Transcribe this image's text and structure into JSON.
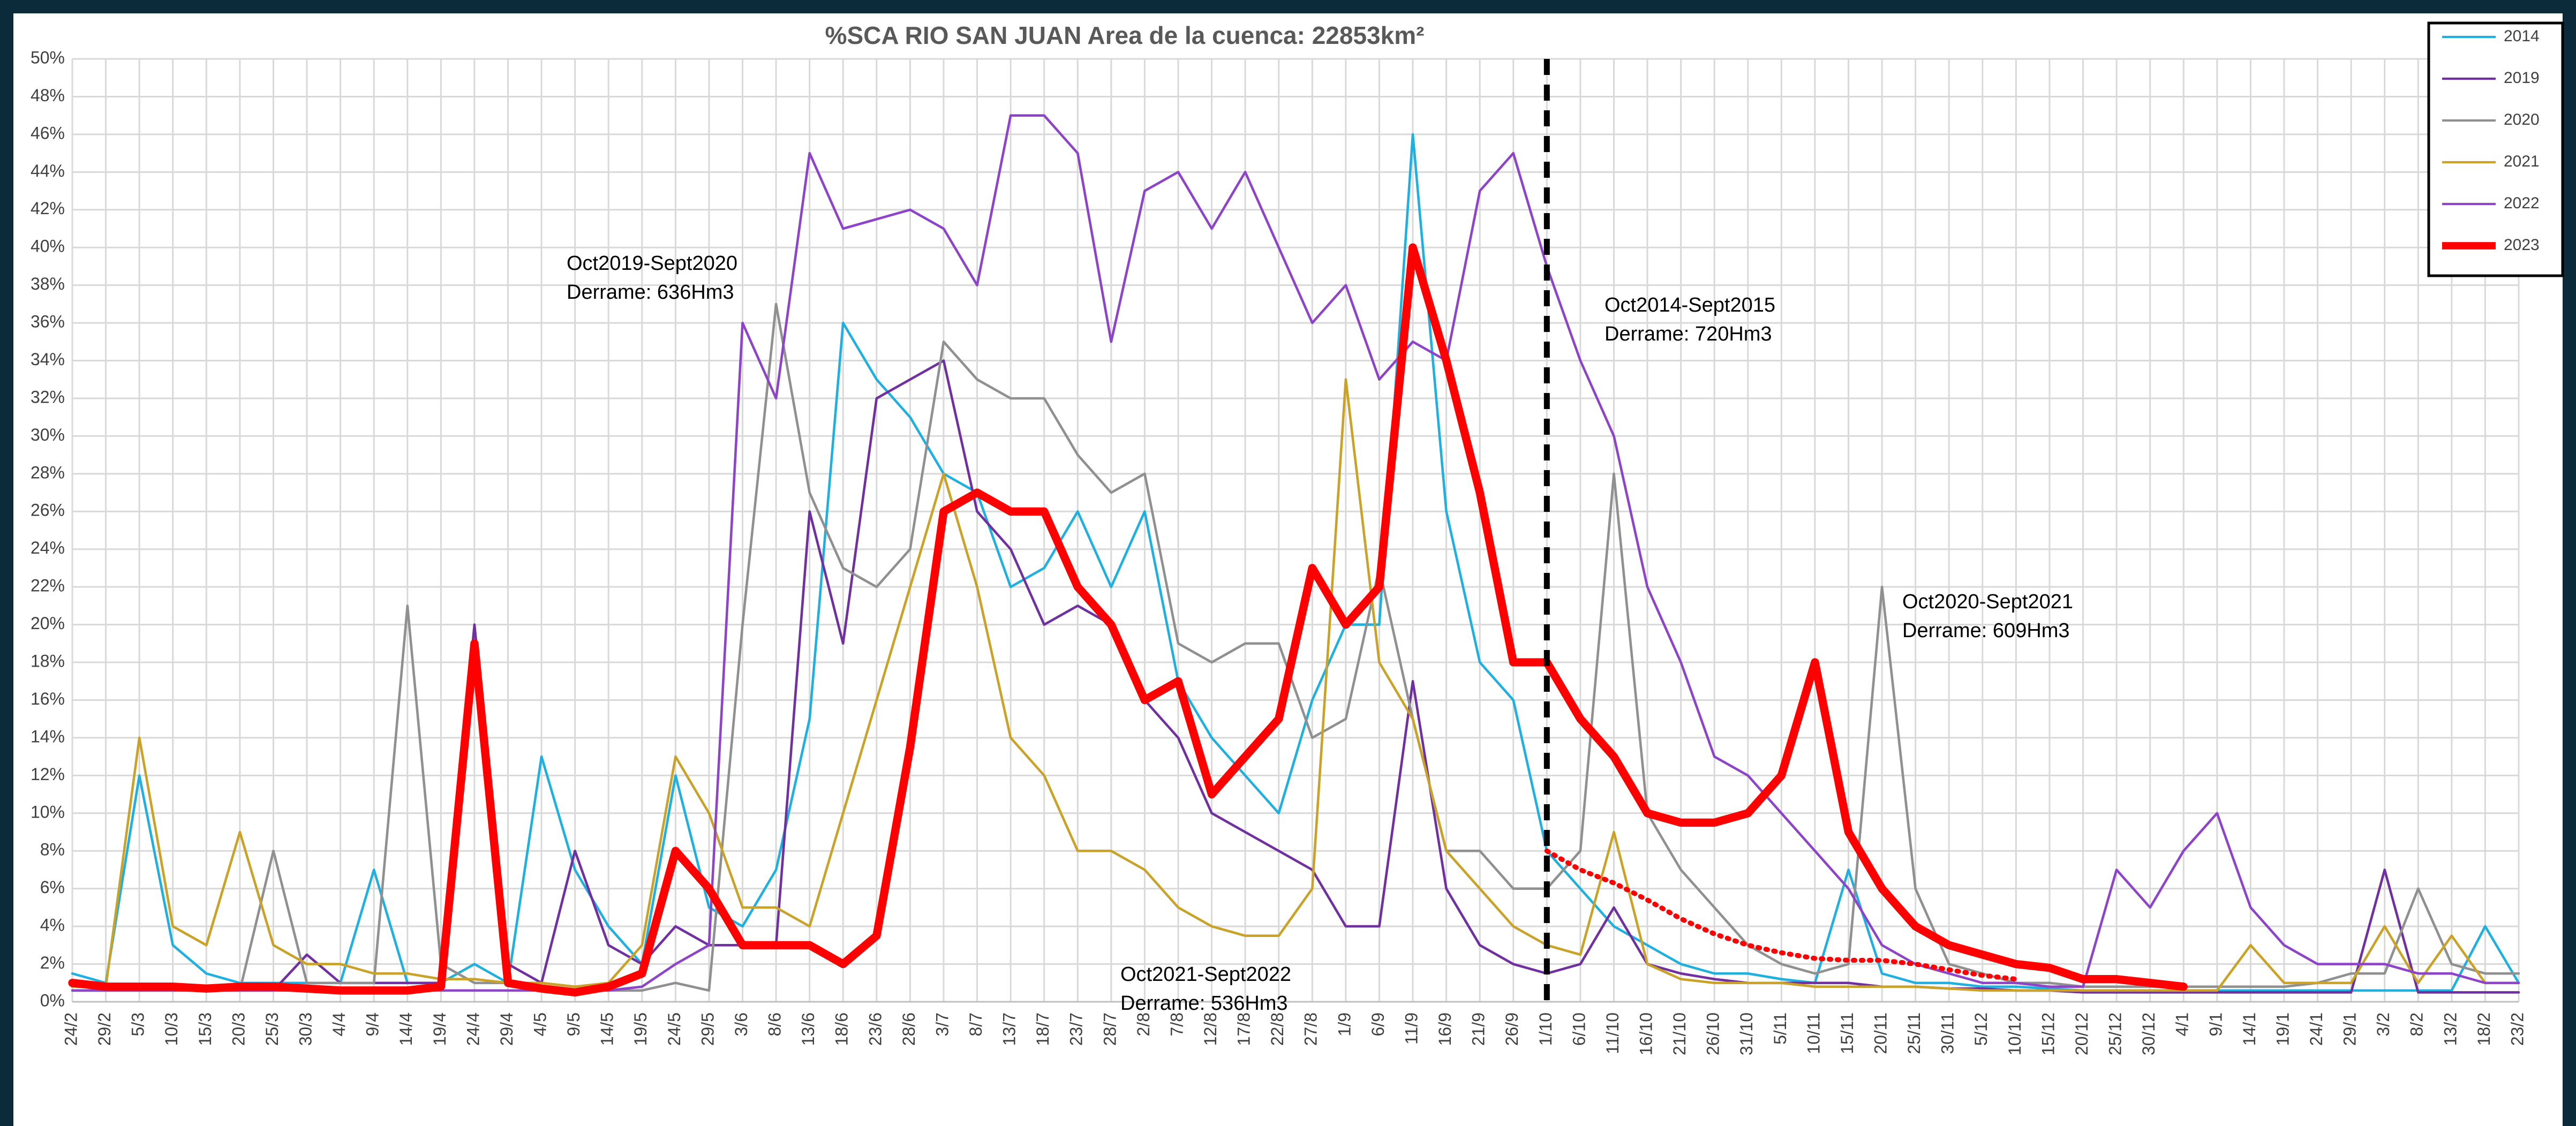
{
  "chart_data": {
    "type": "line",
    "title": "%SCA RIO SAN JUAN Area de la cuenca: 22853km²",
    "categories": [
      "24/2",
      "29/2",
      "5/3",
      "10/3",
      "15/3",
      "20/3",
      "25/3",
      "30/3",
      "4/4",
      "9/4",
      "14/4",
      "19/4",
      "24/4",
      "29/4",
      "4/5",
      "9/5",
      "14/5",
      "19/5",
      "24/5",
      "29/5",
      "3/6",
      "8/6",
      "13/6",
      "18/6",
      "23/6",
      "28/6",
      "3/7",
      "8/7",
      "13/7",
      "18/7",
      "23/7",
      "28/7",
      "2/8",
      "7/8",
      "12/8",
      "17/8",
      "22/8",
      "27/8",
      "1/9",
      "6/9",
      "11/9",
      "16/9",
      "21/9",
      "26/9",
      "1/10",
      "6/10",
      "11/10",
      "16/10",
      "21/10",
      "26/10",
      "31/10",
      "5/11",
      "10/11",
      "15/11",
      "20/11",
      "25/11",
      "30/11",
      "5/12",
      "10/12",
      "15/12",
      "20/12",
      "25/12",
      "30/12",
      "4/1",
      "9/1",
      "14/1",
      "19/1",
      "24/1",
      "29/1",
      "3/2",
      "8/2",
      "13/2",
      "18/2",
      "23/2"
    ],
    "series": [
      {
        "name": "2014",
        "color": "#1fb0e0",
        "width": 1.5,
        "values": [
          1.5,
          1,
          12,
          3,
          1.5,
          1,
          1,
          1,
          1,
          7,
          1,
          1,
          2,
          1,
          13,
          7,
          4,
          2,
          12,
          5,
          4,
          7,
          15,
          36,
          33,
          31,
          28,
          27,
          22,
          23,
          26,
          22,
          26,
          17,
          14,
          12,
          10,
          16,
          20,
          20,
          46,
          26,
          18,
          16,
          8,
          6,
          4,
          3,
          2,
          1.5,
          1.5,
          1.2,
          1,
          7,
          1.5,
          1,
          1,
          0.8,
          0.8,
          0.7,
          0.6,
          0.6,
          0.6,
          0.6,
          0.6,
          0.6,
          0.6,
          0.6,
          0.6,
          0.6,
          0.6,
          0.6,
          4,
          1
        ]
      },
      {
        "name": "2019",
        "color": "#7030a0",
        "width": 1.5,
        "values": [
          0.8,
          0.8,
          0.8,
          0.8,
          0.6,
          0.6,
          0.6,
          2.5,
          1,
          1,
          1,
          1,
          20,
          2,
          1,
          8,
          3,
          2,
          4,
          3,
          3,
          3,
          26,
          19,
          32,
          33,
          34,
          26,
          24,
          20,
          21,
          20,
          16,
          14,
          10,
          9,
          8,
          7,
          4,
          4,
          17,
          6,
          3,
          2,
          1.5,
          2,
          5,
          2,
          1.5,
          1.2,
          1,
          1,
          1,
          1,
          0.8,
          0.8,
          0.7,
          0.7,
          0.6,
          0.6,
          0.5,
          0.5,
          0.5,
          0.5,
          0.5,
          0.5,
          0.5,
          0.5,
          0.5,
          7,
          0.5,
          0.5,
          0.5,
          0.5
        ]
      },
      {
        "name": "2020",
        "color": "#909090",
        "width": 1.5,
        "values": [
          0.6,
          0.6,
          0.6,
          0.6,
          0.6,
          0.6,
          8,
          1,
          1,
          1,
          21,
          2,
          1,
          1,
          0.8,
          0.6,
          0.6,
          0.6,
          1,
          0.6,
          20,
          37,
          27,
          23,
          22,
          24,
          35,
          33,
          32,
          32,
          29,
          27,
          28,
          19,
          18,
          19,
          19,
          14,
          15,
          23,
          15,
          8,
          8,
          6,
          6,
          8,
          28,
          10,
          7,
          5,
          3,
          2,
          1.5,
          2,
          22,
          6,
          2,
          1.5,
          1,
          1,
          0.8,
          0.8,
          0.8,
          0.8,
          0.8,
          0.8,
          0.8,
          1,
          1.5,
          1.5,
          6,
          2,
          1.5,
          1.5
        ]
      },
      {
        "name": "2021",
        "color": "#c9a227",
        "width": 1.5,
        "values": [
          0.8,
          0.8,
          14,
          4,
          3,
          9,
          3,
          2,
          2,
          1.5,
          1.5,
          1.2,
          1.2,
          1,
          1,
          0.8,
          1,
          3,
          13,
          10,
          5,
          5,
          4,
          10,
          16,
          22,
          28,
          22,
          14,
          12,
          8,
          8,
          7,
          5,
          4,
          3.5,
          3.5,
          6,
          33,
          18,
          15,
          8,
          6,
          4,
          3,
          2.5,
          9,
          2,
          1.2,
          1,
          1,
          1,
          0.8,
          0.8,
          0.8,
          0.8,
          0.7,
          0.6,
          0.6,
          0.6,
          0.6,
          0.6,
          0.6,
          0.6,
          0.6,
          3,
          1,
          1,
          1,
          4,
          1,
          3.5,
          1,
          1
        ]
      },
      {
        "name": "2022",
        "color": "#8e44c8",
        "width": 1.5,
        "values": [
          0.6,
          0.6,
          0.6,
          0.6,
          0.6,
          0.6,
          0.6,
          0.6,
          0.6,
          0.6,
          0.6,
          0.6,
          0.6,
          0.6,
          0.6,
          0.6,
          0.6,
          0.8,
          2,
          3,
          36,
          32,
          45,
          41,
          41.5,
          42,
          41,
          38,
          47,
          47,
          45,
          35,
          43,
          44,
          41,
          44,
          40,
          36,
          38,
          33,
          35,
          34,
          43,
          45,
          39,
          34,
          30,
          22,
          18,
          13,
          12,
          10,
          8,
          6,
          3,
          2,
          1.5,
          1,
          1,
          0.8,
          0.8,
          7,
          5,
          8,
          10,
          5,
          3,
          2,
          2,
          2,
          1.5,
          1.5,
          1,
          1
        ]
      },
      {
        "name": "2023",
        "color": "#ff0000",
        "width": 5,
        "values": [
          1,
          0.8,
          0.8,
          0.8,
          0.7,
          0.8,
          0.8,
          0.7,
          0.6,
          0.6,
          0.6,
          0.8,
          19,
          1,
          0.7,
          0.5,
          0.8,
          1.5,
          8,
          6,
          3,
          3,
          3,
          2,
          3.5,
          13.5,
          26,
          27,
          26,
          26,
          22,
          20,
          16,
          17,
          11,
          13,
          15,
          23,
          20,
          22,
          40,
          34,
          27,
          18,
          18,
          15,
          13,
          10,
          9.5,
          9.5,
          10,
          12,
          18,
          9,
          6,
          4,
          3,
          2.5,
          2,
          1.8,
          1.2,
          1.2,
          1,
          0.8,
          null,
          null,
          null,
          null,
          null,
          null,
          null,
          null,
          null,
          null
        ]
      }
    ],
    "trend": {
      "color": "#ff0000",
      "values": [
        null,
        null,
        null,
        null,
        null,
        null,
        null,
        null,
        null,
        null,
        null,
        null,
        null,
        null,
        null,
        null,
        null,
        null,
        null,
        null,
        null,
        null,
        null,
        null,
        null,
        null,
        null,
        null,
        null,
        null,
        null,
        null,
        null,
        null,
        null,
        null,
        null,
        null,
        null,
        null,
        null,
        null,
        null,
        null,
        8,
        7,
        6.3,
        5.4,
        4.4,
        3.6,
        3,
        2.6,
        2.3,
        2.2,
        2.2,
        2,
        1.7,
        1.4,
        1.2,
        null,
        null,
        null,
        null,
        null,
        null,
        null,
        null,
        null,
        null,
        null,
        null,
        null,
        null,
        null
      ]
    },
    "reference_line": {
      "x": "1/10",
      "color": "#000000"
    },
    "annotations": [
      {
        "lines": [
          "Oct2019-Sept2020",
          "Derrame: 636Hm3"
        ]
      },
      {
        "lines": [
          "Oct2014-Sept2015",
          "Derrame: 720Hm3"
        ]
      },
      {
        "lines": [
          "Oct2020-Sept2021",
          "Derrame: 609Hm3"
        ]
      },
      {
        "lines": [
          "Oct2021-Sept2022",
          "Derrame: 536Hm3"
        ]
      }
    ],
    "ylim": [
      0,
      50
    ],
    "yticks": [
      {
        "value": 0,
        "label": "0%"
      },
      {
        "value": 2,
        "label": "2%"
      },
      {
        "value": 4,
        "label": "4%"
      },
      {
        "value": 6,
        "label": "6%"
      },
      {
        "value": 8,
        "label": "8%"
      },
      {
        "value": 10,
        "label": "10%"
      },
      {
        "value": 12,
        "label": "12%"
      },
      {
        "value": 14,
        "label": "14%"
      },
      {
        "value": 16,
        "label": "16%"
      },
      {
        "value": 18,
        "label": "18%"
      },
      {
        "value": 20,
        "label": "20%"
      },
      {
        "value": 22,
        "label": "22%"
      },
      {
        "value": 24,
        "label": "24%"
      },
      {
        "value": 26,
        "label": "26%"
      },
      {
        "value": 28,
        "label": "28%"
      },
      {
        "value": 30,
        "label": "30%"
      },
      {
        "value": 32,
        "label": "32%"
      },
      {
        "value": 34,
        "label": "34%"
      },
      {
        "value": 36,
        "label": "36%"
      },
      {
        "value": 38,
        "label": "38%"
      },
      {
        "value": 40,
        "label": "40%"
      },
      {
        "value": 42,
        "label": "42%"
      },
      {
        "value": 44,
        "label": "44%"
      },
      {
        "value": 46,
        "label": "46%"
      },
      {
        "value": 48,
        "label": "48%"
      },
      {
        "value": 50,
        "label": "50%"
      }
    ],
    "grid": true,
    "legend": "top-right"
  }
}
